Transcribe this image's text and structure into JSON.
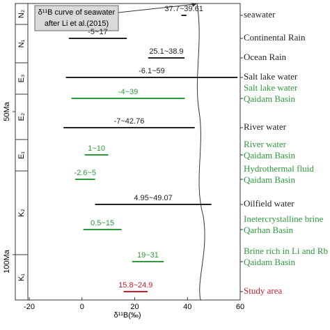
{
  "chart_data": {
    "type": "range",
    "annotation": [
      "δ¹¹B curve of seawater",
      "after Li et al.(2015)"
    ],
    "x_label": "δ¹¹B(‰)",
    "ages": [
      "50Ma",
      "100Ma"
    ],
    "periods": [
      "N₂",
      "N₁",
      "E₃",
      "E₂",
      "E₁",
      "K₂",
      "K₁"
    ],
    "categories": [
      [
        "seawater"
      ],
      [
        "Continental Rain"
      ],
      [
        "Ocean  Rain"
      ],
      [
        "Salt lake water"
      ],
      [
        "Salt lake water",
        "Qaidam Basin"
      ],
      [
        "River water"
      ],
      [
        "River water",
        "Qaidam Basin"
      ],
      [
        "Hydrothermal fluid",
        "Qaidam Basin"
      ],
      [
        "Oilfield water"
      ],
      [
        "Inetercrystalline brine",
        "Qarhan Basin"
      ],
      [
        "Brine rich in Li and Rb",
        "Qaidam Basin"
      ],
      [
        "Study area"
      ]
    ],
    "low": [
      37.7,
      -5,
      25.1,
      -6.1,
      -4,
      -7,
      1,
      -2.6,
      4.95,
      0.5,
      19,
      15.8
    ],
    "high": [
      39.61,
      17,
      38.9,
      59,
      39,
      42.76,
      10,
      5,
      49.07,
      15,
      31,
      24.9
    ],
    "value_labels": [
      "37.7~39.61",
      "-5~17",
      "25.1~38.9",
      "-6.1~59",
      "-4~39",
      "-7~42.76",
      "1~10",
      "-2.6~5",
      "4.95~49.07",
      "0.5~15",
      "19~31",
      "15.8~24.9"
    ],
    "colors": [
      "#222222",
      "#222222",
      "#222222",
      "#222222",
      "#2e9a3a",
      "#222222",
      "#2e9a3a",
      "#2e9a3a",
      "#222222",
      "#2e9a3a",
      "#2e9a3a",
      "#c8202a"
    ],
    "xlim": [
      -20,
      60
    ],
    "xticks": [
      -20,
      0,
      20,
      40,
      60
    ]
  }
}
